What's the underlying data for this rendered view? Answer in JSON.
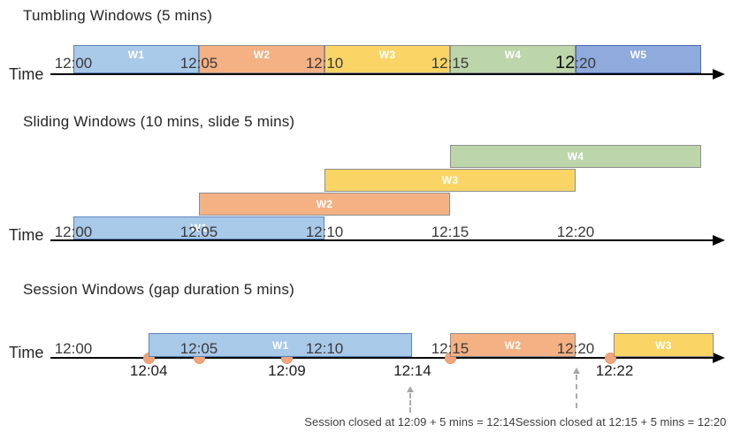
{
  "axis_label": "Time",
  "palette": {
    "blue_fill": "#A9C9E8",
    "blue_border": "#5B84B8",
    "orange_fill": "#F4B183",
    "orange_border": "#8E8E8E",
    "yellow_fill": "#FAD566",
    "yellow_border": "#8E8E8E",
    "green_fill": "#BCD6A9",
    "green_border": "#8E8E8E",
    "indigo_fill": "#8FAADC",
    "indigo_border": "#4A69AD",
    "event_dot": "#F2A57C",
    "event_dot_border": "#E89767",
    "axis": "#000000",
    "tick_text": "#3A3A3A",
    "window_label_text": "#FFFFFF",
    "annotation_text": "#3F3F3F",
    "dashed_arrow": "#A6A6A6"
  },
  "sections": [
    {
      "id": "tumbling",
      "title": "Tumbling Windows (5 mins)",
      "ticks": [
        {
          "min": 0,
          "label": "12:00"
        },
        {
          "min": 5,
          "label": "12:05"
        },
        {
          "min": 10,
          "label": "12:10"
        },
        {
          "min": 15,
          "label": "12:15"
        },
        {
          "min": 20,
          "label": "12:20",
          "emphasis": true
        }
      ],
      "windows": [
        {
          "label": "W1",
          "start": "12:00",
          "end": "12:05",
          "start_min": 0,
          "end_min": 5,
          "color": "blue",
          "row": 0
        },
        {
          "label": "W2",
          "start": "12:05",
          "end": "12:10",
          "start_min": 5,
          "end_min": 10,
          "color": "orange",
          "row": 0
        },
        {
          "label": "W3",
          "start": "12:10",
          "end": "12:15",
          "start_min": 10,
          "end_min": 15,
          "color": "yellow",
          "row": 0
        },
        {
          "label": "W4",
          "start": "12:15",
          "end": "12:20",
          "start_min": 15,
          "end_min": 20,
          "color": "green",
          "row": 0
        },
        {
          "label": "W5",
          "start": "12:20",
          "end": "12:25",
          "start_min": 20,
          "end_min": 25,
          "color": "indigo",
          "row": 0
        }
      ]
    },
    {
      "id": "sliding",
      "title": "Sliding Windows (10 mins, slide 5 mins)",
      "ticks": [
        {
          "min": 0,
          "label": "12:00"
        },
        {
          "min": 5,
          "label": "12:05"
        },
        {
          "min": 10,
          "label": "12:10"
        },
        {
          "min": 15,
          "label": "12:15"
        },
        {
          "min": 20,
          "label": "12:20"
        }
      ],
      "windows": [
        {
          "label": "W1",
          "start": "12:00",
          "end": "12:10",
          "start_min": 0,
          "end_min": 10,
          "color": "blue",
          "row": 0
        },
        {
          "label": "W2",
          "start": "12:05",
          "end": "12:15",
          "start_min": 5,
          "end_min": 15,
          "color": "orange",
          "row": 1
        },
        {
          "label": "W3",
          "start": "12:10",
          "end": "12:20",
          "start_min": 10,
          "end_min": 20,
          "color": "yellow",
          "row": 2
        },
        {
          "label": "W4",
          "start": "12:15",
          "end": "12:25",
          "start_min": 15,
          "end_min": 25,
          "color": "green",
          "row": 3
        }
      ]
    },
    {
      "id": "session",
      "title": "Session Windows (gap duration 5 mins)",
      "ticks": [
        {
          "min": 0,
          "label": "12:00"
        },
        {
          "min": 5,
          "label": "12:05"
        },
        {
          "min": 10,
          "label": "12:10"
        },
        {
          "min": 15,
          "label": "12:15"
        },
        {
          "min": 20,
          "label": "12:20"
        }
      ],
      "windows": [
        {
          "label": "W1",
          "start": "12:04",
          "end": "12:14",
          "start_min": 3,
          "end_min": 13.5,
          "color": "blue",
          "row": 0
        },
        {
          "label": "W2",
          "start": "12:15",
          "end": "12:20",
          "start_min": 15,
          "end_min": 20,
          "color": "orange",
          "row": 0
        },
        {
          "label": "W3",
          "start": "12:22",
          "end": "",
          "start_min": 21.5,
          "end_min": 25.5,
          "color": "yellow",
          "row": 0
        }
      ],
      "events": [
        {
          "min": 3
        },
        {
          "min": 5
        },
        {
          "min": 8.5
        },
        {
          "min": 15
        },
        {
          "min": 21.4
        }
      ],
      "event_labels": [
        {
          "min": 3,
          "label": "12:04"
        },
        {
          "min": 8.5,
          "label": "12:09"
        },
        {
          "min": 13.5,
          "label": "12:14"
        },
        {
          "min": 21.55,
          "label": "12:22"
        }
      ],
      "callouts": [
        {
          "text": "Session closed at 12:09 + 5 mins = 12:14",
          "arrow_min": 13.4,
          "text_min": 13.4
        },
        {
          "text": "Session closed at 12:15 + 5 mins = 12:20",
          "arrow_min": 20.05,
          "text_min": 21.8
        }
      ]
    }
  ]
}
